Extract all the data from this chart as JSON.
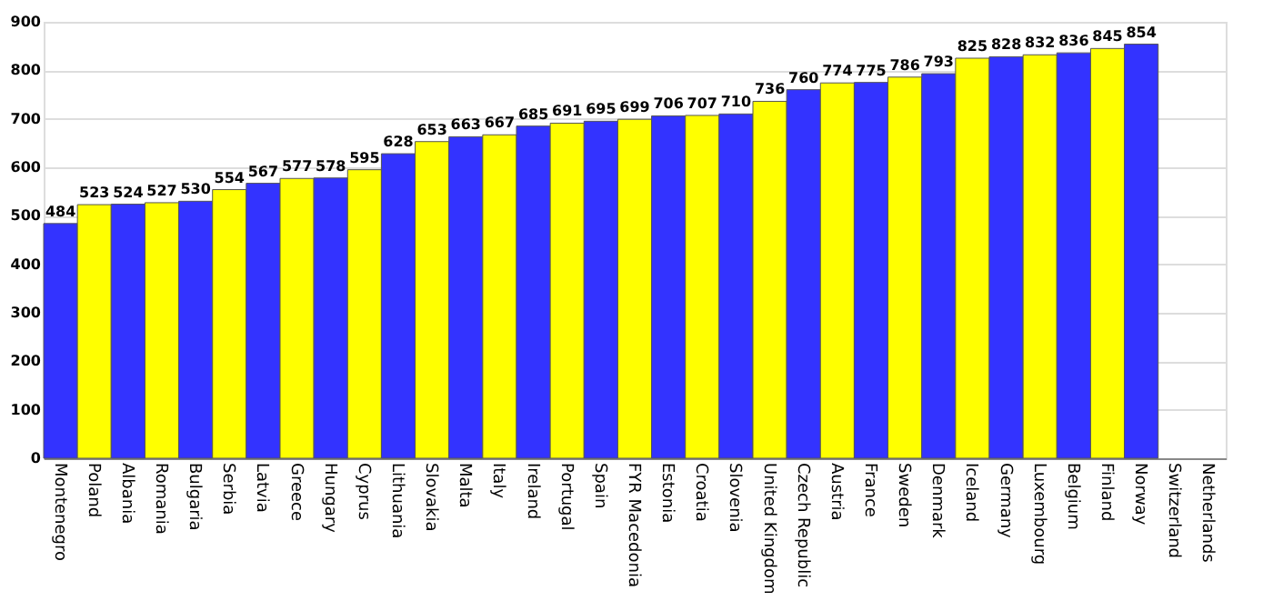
{
  "chart_data": {
    "type": "bar",
    "categories": [
      "Montenegro",
      "Poland",
      "Albania",
      "Romania",
      "Bulgaria",
      "Serbia",
      "Latvia",
      "Greece",
      "Hungary",
      "Cyprus",
      "Lithuania",
      "Slovakia",
      "Malta",
      "Italy",
      "Ireland",
      "Portugal",
      "Spain",
      "FYR Macedonia",
      "Estonia",
      "Croatia",
      "Slovenia",
      "United Kingdom",
      "Czech Republic",
      "Austria",
      "France",
      "Sweden",
      "Denmark",
      "Iceland",
      "Germany",
      "Luxembourg",
      "Belgium",
      "Finland",
      "Norway",
      "Switzerland",
      "Netherlands"
    ],
    "values": [
      484,
      523,
      524,
      527,
      530,
      554,
      567,
      577,
      578,
      595,
      628,
      653,
      663,
      667,
      685,
      691,
      695,
      699,
      706,
      707,
      710,
      736,
      760,
      774,
      775,
      786,
      793,
      825,
      828,
      832,
      836,
      845,
      854,
      null,
      null
    ],
    "colors": [
      "#3333ff",
      "#ffff00",
      "#3333ff",
      "#ffff00",
      "#3333ff",
      "#ffff00",
      "#3333ff",
      "#ffff00",
      "#3333ff",
      "#ffff00",
      "#3333ff",
      "#ffff00",
      "#3333ff",
      "#ffff00",
      "#3333ff",
      "#ffff00",
      "#3333ff",
      "#ffff00",
      "#3333ff",
      "#ffff00",
      "#3333ff",
      "#ffff00",
      "#3333ff",
      "#ffff00",
      "#3333ff",
      "#ffff00",
      "#3333ff",
      "#ffff00",
      "#3333ff",
      "#ffff00",
      "#3333ff",
      "#ffff00",
      "#3333ff",
      "#ffff00",
      "#3333ff"
    ],
    "ylim": [
      0,
      900
    ],
    "yticks": [
      0,
      100,
      200,
      300,
      400,
      500,
      600,
      700,
      800,
      900
    ],
    "grid": "y",
    "data_labels": true
  }
}
